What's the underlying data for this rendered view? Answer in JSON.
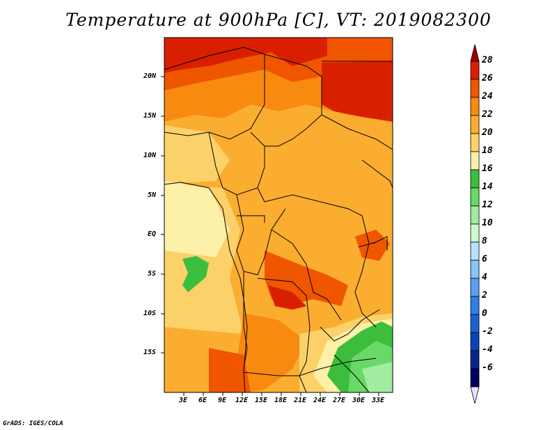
{
  "title": "Temperature at 900hPa [C], VT: 2019082300",
  "footer": "GrADS: IGES/COLA",
  "lat_labels": [
    "20N",
    "15N",
    "10N",
    "5N",
    "EQ",
    "5S",
    "10S",
    "15S"
  ],
  "lon_labels": [
    "3E",
    "6E",
    "9E",
    "12E",
    "15E",
    "18E",
    "21E",
    "24E",
    "27E",
    "30E",
    "33E"
  ],
  "colorbar": {
    "labels": [
      "28",
      "26",
      "24",
      "22",
      "20",
      "18",
      "16",
      "14",
      "12",
      "10",
      "8",
      "6",
      "4",
      "2",
      "0",
      "-2",
      "-4",
      "-6"
    ],
    "colors": [
      "#a00000",
      "#d82000",
      "#f05500",
      "#f88a10",
      "#fbad30",
      "#fcd16a",
      "#fdf0a8",
      "#3cbe3c",
      "#68d868",
      "#a0eca0",
      "#d0f8d0",
      "#b8e0ff",
      "#88c4f8",
      "#5aa0f0",
      "#2e80e6",
      "#1a62d0",
      "#0c44b4",
      "#06268c",
      "#000060",
      "#e4e4ff"
    ]
  },
  "map": {
    "lon_range": [
      0,
      35
    ],
    "lat_range": [
      -20,
      25
    ],
    "background": "#fbad30"
  }
}
